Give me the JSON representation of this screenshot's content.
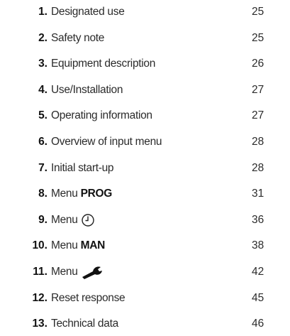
{
  "toc": {
    "items": [
      {
        "number": "1.",
        "title": "Designated use",
        "page": 25
      },
      {
        "number": "2.",
        "title": "Safety note",
        "page": 25
      },
      {
        "number": "3.",
        "title": "Equipment description",
        "page": 26
      },
      {
        "number": "4.",
        "title": "Use/Installation",
        "page": 27
      },
      {
        "number": "5.",
        "title": "Operating information",
        "page": 27
      },
      {
        "number": "6.",
        "title": "Overview of input menu",
        "page": 28
      },
      {
        "number": "7.",
        "title": "Initial start-up",
        "page": 28
      },
      {
        "number": "8.",
        "title": "Menu",
        "emphasis": "PROG",
        "page": 31
      },
      {
        "number": "9.",
        "title": "Menu",
        "page": 36
      },
      {
        "number": "10.",
        "title": "Menu",
        "emphasis": "MAN",
        "page": 38
      },
      {
        "number": "11.",
        "title": "Menu",
        "page": 42
      },
      {
        "number": "12.",
        "title": "Reset response",
        "page": 45
      },
      {
        "number": "13.",
        "title": "Technical data",
        "page": 46
      }
    ]
  }
}
